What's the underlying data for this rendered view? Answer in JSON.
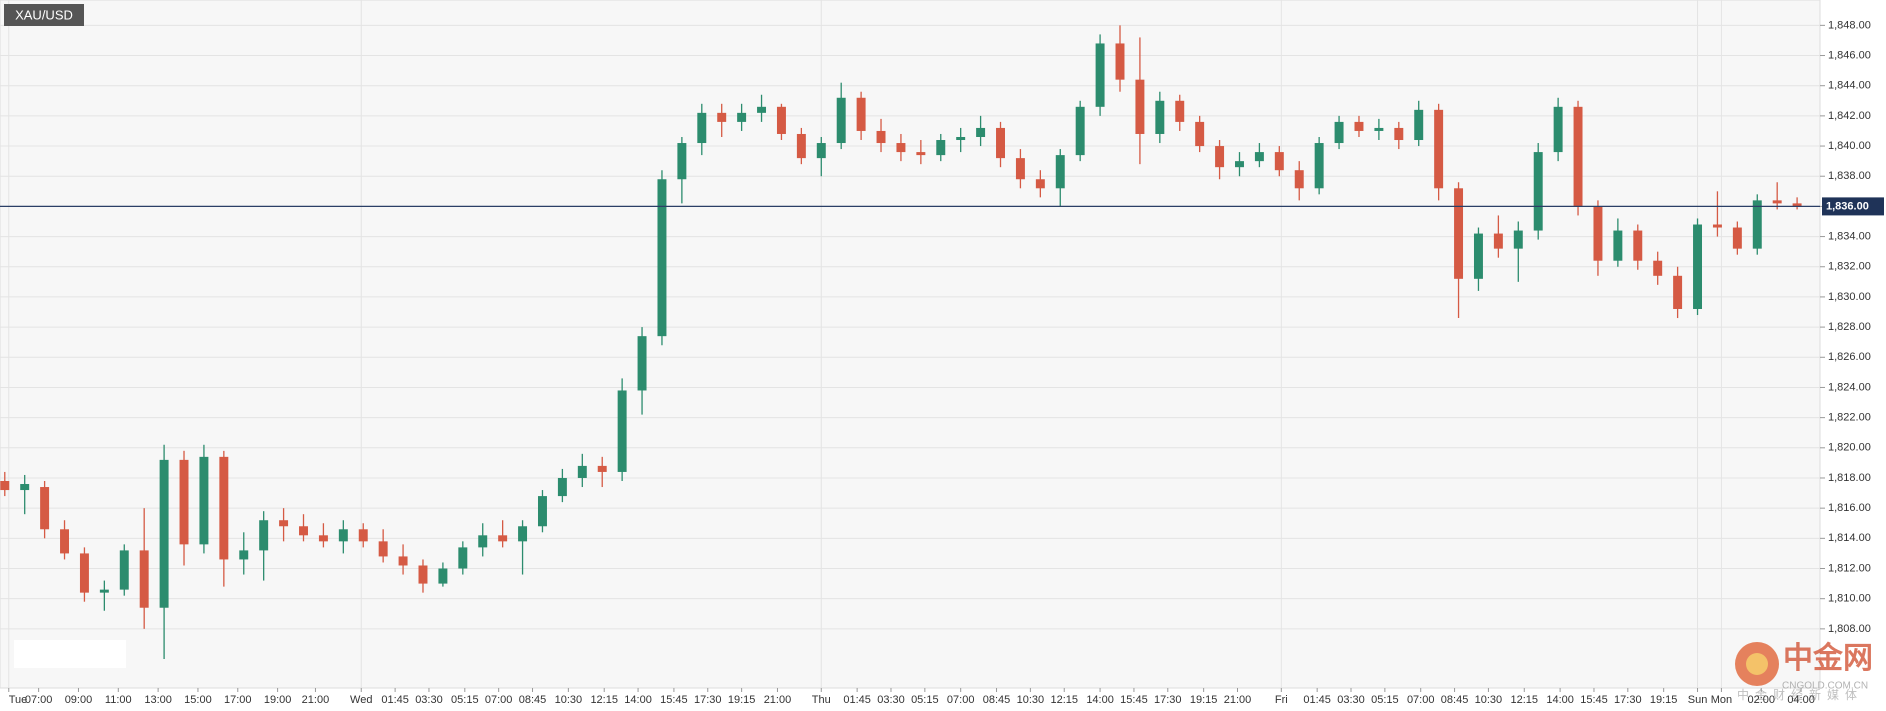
{
  "chart_data": {
    "type": "candlestick",
    "title": "XAU/USD",
    "x": [
      0,
      1,
      2,
      3,
      4,
      5,
      6,
      7,
      8,
      9,
      10,
      11,
      12,
      13,
      14,
      15,
      16,
      17,
      18,
      19,
      20,
      21,
      22,
      23,
      24,
      25,
      26,
      27,
      28,
      29,
      30,
      31,
      32,
      33,
      34,
      35,
      36,
      37,
      38,
      39,
      40,
      41,
      42,
      43,
      44,
      45,
      46,
      47,
      48,
      49,
      50,
      51,
      52,
      53,
      54,
      55,
      56,
      57,
      58,
      59,
      60,
      61,
      62,
      63,
      64,
      65,
      66,
      67,
      68,
      69,
      70,
      71,
      72,
      73,
      74,
      75,
      76,
      77,
      78,
      79,
      80,
      81,
      82,
      83,
      84,
      85,
      86,
      87,
      88,
      89,
      90
    ],
    "open": [
      1817.8,
      1817.2,
      1817.4,
      1814.6,
      1813.0,
      1810.4,
      1810.6,
      1813.2,
      1809.4,
      1819.2,
      1813.6,
      1819.4,
      1812.6,
      1813.2,
      1815.2,
      1814.8,
      1814.2,
      1813.8,
      1814.6,
      1813.8,
      1812.8,
      1812.2,
      1811.0,
      1812.0,
      1813.4,
      1814.2,
      1813.8,
      1814.8,
      1816.8,
      1818.0,
      1818.8,
      1818.4,
      1823.8,
      1827.4,
      1837.8,
      1840.2,
      1842.2,
      1841.6,
      1842.2,
      1842.6,
      1840.8,
      1839.2,
      1840.2,
      1843.2,
      1841.0,
      1840.2,
      1839.6,
      1839.4,
      1840.4,
      1840.6,
      1841.2,
      1839.2,
      1837.8,
      1837.2,
      1839.4,
      1842.6,
      1846.8,
      1844.4,
      1840.8,
      1843.0,
      1841.6,
      1840.0,
      1838.6,
      1839.0,
      1839.6,
      1838.4,
      1837.2,
      1840.2,
      1841.6,
      1841.0,
      1841.2,
      1840.4,
      1842.4,
      1837.2,
      1831.2,
      1834.2,
      1833.2,
      1834.4,
      1839.6,
      1842.6,
      1836.0,
      1832.4,
      1834.4,
      1832.4,
      1831.4,
      1829.2,
      1834.8,
      1834.6,
      1833.2,
      1836.4,
      1836.2
    ],
    "high": [
      1818.4,
      1818.2,
      1817.8,
      1815.2,
      1813.4,
      1811.2,
      1813.6,
      1816.0,
      1820.2,
      1819.8,
      1820.2,
      1819.8,
      1814.4,
      1815.8,
      1816.0,
      1815.6,
      1815.0,
      1815.2,
      1815.0,
      1814.6,
      1813.6,
      1812.6,
      1812.4,
      1813.8,
      1815.0,
      1815.2,
      1815.2,
      1817.2,
      1818.6,
      1819.6,
      1819.4,
      1824.6,
      1828.0,
      1838.4,
      1840.6,
      1842.8,
      1842.8,
      1842.8,
      1843.4,
      1842.8,
      1841.2,
      1840.6,
      1844.2,
      1843.6,
      1841.8,
      1840.8,
      1840.4,
      1840.8,
      1841.2,
      1842.0,
      1841.6,
      1839.8,
      1838.4,
      1839.8,
      1843.0,
      1847.4,
      1848.0,
      1847.2,
      1843.6,
      1843.4,
      1842.0,
      1840.4,
      1839.6,
      1840.2,
      1840.0,
      1839.0,
      1840.6,
      1842.0,
      1842.0,
      1841.8,
      1841.6,
      1843.0,
      1842.8,
      1837.6,
      1834.6,
      1835.4,
      1835.0,
      1840.2,
      1843.2,
      1843.0,
      1836.4,
      1835.2,
      1834.8,
      1833.0,
      1832.0,
      1835.2,
      1837.0,
      1835.0,
      1836.8,
      1837.6,
      1836.6
    ],
    "low": [
      1816.8,
      1815.6,
      1814.0,
      1812.6,
      1809.8,
      1809.2,
      1810.2,
      1808.0,
      1806.0,
      1812.2,
      1813.0,
      1810.8,
      1811.6,
      1811.2,
      1813.8,
      1813.8,
      1813.4,
      1813.0,
      1813.4,
      1812.4,
      1811.6,
      1810.4,
      1810.8,
      1811.6,
      1812.8,
      1813.4,
      1811.6,
      1814.4,
      1816.4,
      1817.4,
      1817.4,
      1817.8,
      1822.2,
      1826.8,
      1836.2,
      1839.4,
      1840.6,
      1841.0,
      1841.6,
      1840.4,
      1838.8,
      1838.0,
      1839.8,
      1840.4,
      1839.6,
      1839.0,
      1838.8,
      1839.0,
      1839.6,
      1840.0,
      1838.6,
      1837.2,
      1836.6,
      1836.0,
      1839.0,
      1842.0,
      1843.6,
      1838.8,
      1840.2,
      1841.0,
      1839.6,
      1837.8,
      1838.0,
      1838.6,
      1838.0,
      1836.4,
      1836.8,
      1839.8,
      1840.6,
      1840.4,
      1839.8,
      1840.0,
      1836.4,
      1828.6,
      1830.4,
      1832.6,
      1831.0,
      1833.8,
      1839.0,
      1835.4,
      1831.4,
      1832.0,
      1831.8,
      1830.8,
      1828.6,
      1828.8,
      1834.0,
      1832.8,
      1832.8,
      1835.8,
      1835.8
    ],
    "close": [
      1817.2,
      1817.6,
      1814.6,
      1813.0,
      1810.4,
      1810.6,
      1813.2,
      1809.4,
      1819.2,
      1813.6,
      1819.4,
      1812.6,
      1813.2,
      1815.2,
      1814.8,
      1814.2,
      1813.8,
      1814.6,
      1813.8,
      1812.8,
      1812.2,
      1811.0,
      1812.0,
      1813.4,
      1814.2,
      1813.8,
      1814.8,
      1816.8,
      1818.0,
      1818.8,
      1818.4,
      1823.8,
      1827.4,
      1837.8,
      1840.2,
      1842.2,
      1841.6,
      1842.2,
      1842.6,
      1840.8,
      1839.2,
      1840.2,
      1843.2,
      1841.0,
      1840.2,
      1839.6,
      1839.4,
      1840.4,
      1840.6,
      1841.2,
      1839.2,
      1837.8,
      1837.2,
      1839.4,
      1842.6,
      1846.8,
      1844.4,
      1840.8,
      1843.0,
      1841.6,
      1840.0,
      1838.6,
      1839.0,
      1839.6,
      1838.4,
      1837.2,
      1840.2,
      1841.6,
      1841.0,
      1841.2,
      1840.4,
      1842.4,
      1837.2,
      1831.2,
      1834.2,
      1833.2,
      1834.4,
      1839.6,
      1842.6,
      1836.0,
      1832.4,
      1834.4,
      1832.4,
      1831.4,
      1829.2,
      1834.8,
      1834.6,
      1833.2,
      1836.4,
      1836.2,
      1836.0
    ],
    "up_color": "#2c8c6e",
    "down_color": "#d55a44",
    "xlim": [
      -0.24,
      91.15
    ],
    "ylim": [
      1804.08,
      1849.68
    ],
    "xticks": [
      {
        "value": 0.2,
        "label": "Tue"
      },
      {
        "value": 1.7,
        "label": "07:00"
      },
      {
        "value": 3.7,
        "label": "09:00"
      },
      {
        "value": 5.7,
        "label": "11:00"
      },
      {
        "value": 7.7,
        "label": "13:00"
      },
      {
        "value": 9.7,
        "label": "15:00"
      },
      {
        "value": 11.7,
        "label": "17:00"
      },
      {
        "value": 13.7,
        "label": "19:00"
      },
      {
        "value": 15.6,
        "label": "21:00"
      },
      {
        "value": 17.9,
        "label": "Wed"
      },
      {
        "value": 19.6,
        "label": "01:45"
      },
      {
        "value": 21.3,
        "label": "03:30"
      },
      {
        "value": 23.1,
        "label": "05:15"
      },
      {
        "value": 24.8,
        "label": "07:00"
      },
      {
        "value": 26.5,
        "label": "08:45"
      },
      {
        "value": 28.3,
        "label": "10:30"
      },
      {
        "value": 30.1,
        "label": "12:15"
      },
      {
        "value": 31.8,
        "label": "14:00"
      },
      {
        "value": 33.6,
        "label": "15:45"
      },
      {
        "value": 35.3,
        "label": "17:30"
      },
      {
        "value": 37.0,
        "label": "19:15"
      },
      {
        "value": 38.8,
        "label": "21:00"
      },
      {
        "value": 41.0,
        "label": "Thu"
      },
      {
        "value": 42.8,
        "label": "01:45"
      },
      {
        "value": 44.5,
        "label": "03:30"
      },
      {
        "value": 46.2,
        "label": "05:15"
      },
      {
        "value": 48.0,
        "label": "07:00"
      },
      {
        "value": 49.8,
        "label": "08:45"
      },
      {
        "value": 51.5,
        "label": "10:30"
      },
      {
        "value": 53.2,
        "label": "12:15"
      },
      {
        "value": 55.0,
        "label": "14:00"
      },
      {
        "value": 56.7,
        "label": "15:45"
      },
      {
        "value": 58.4,
        "label": "17:30"
      },
      {
        "value": 60.2,
        "label": "19:15"
      },
      {
        "value": 61.9,
        "label": "21:00"
      },
      {
        "value": 64.1,
        "label": "Fri"
      },
      {
        "value": 65.9,
        "label": "01:45"
      },
      {
        "value": 67.6,
        "label": "03:30"
      },
      {
        "value": 69.3,
        "label": "05:15"
      },
      {
        "value": 71.1,
        "label": "07:00"
      },
      {
        "value": 72.8,
        "label": "08:45"
      },
      {
        "value": 74.5,
        "label": "10:30"
      },
      {
        "value": 76.3,
        "label": "12:15"
      },
      {
        "value": 78.1,
        "label": "14:00"
      },
      {
        "value": 79.8,
        "label": "15:45"
      },
      {
        "value": 81.5,
        "label": "17:30"
      },
      {
        "value": 83.3,
        "label": "19:15"
      },
      {
        "value": 85.0,
        "label": "Sun"
      },
      {
        "value": 86.2,
        "label": "Mon"
      },
      {
        "value": 88.2,
        "label": "02:00"
      },
      {
        "value": 90.2,
        "label": "04:00"
      }
    ],
    "yticks": [
      {
        "value": 1808,
        "label": "1,808.00"
      },
      {
        "value": 1810,
        "label": "1,810.00"
      },
      {
        "value": 1812,
        "label": "1,812.00"
      },
      {
        "value": 1814,
        "label": "1,814.00"
      },
      {
        "value": 1816,
        "label": "1,816.00"
      },
      {
        "value": 1818,
        "label": "1,818.00"
      },
      {
        "value": 1820,
        "label": "1,820.00"
      },
      {
        "value": 1822,
        "label": "1,822.00"
      },
      {
        "value": 1824,
        "label": "1,824.00"
      },
      {
        "value": 1826,
        "label": "1,826.00"
      },
      {
        "value": 1828,
        "label": "1,828.00"
      },
      {
        "value": 1830,
        "label": "1,830.00"
      },
      {
        "value": 1832,
        "label": "1,832.00"
      },
      {
        "value": 1834,
        "label": "1,834.00"
      },
      {
        "value": 1836,
        "label": "1,836.00"
      },
      {
        "value": 1838,
        "label": "1,838.00"
      },
      {
        "value": 1840,
        "label": "1,840.00"
      },
      {
        "value": 1842,
        "label": "1,842.00"
      },
      {
        "value": 1844,
        "label": "1,844.00"
      },
      {
        "value": 1846,
        "label": "1,846.00"
      },
      {
        "value": 1848,
        "label": "1,848.00"
      }
    ],
    "grid": true,
    "last_price": {
      "value": 1836,
      "label": "1,836.00"
    }
  },
  "watermark": {
    "name": "中金网",
    "site": "CNGOLD.COM.CN",
    "slogan": "中金财经新媒体"
  }
}
